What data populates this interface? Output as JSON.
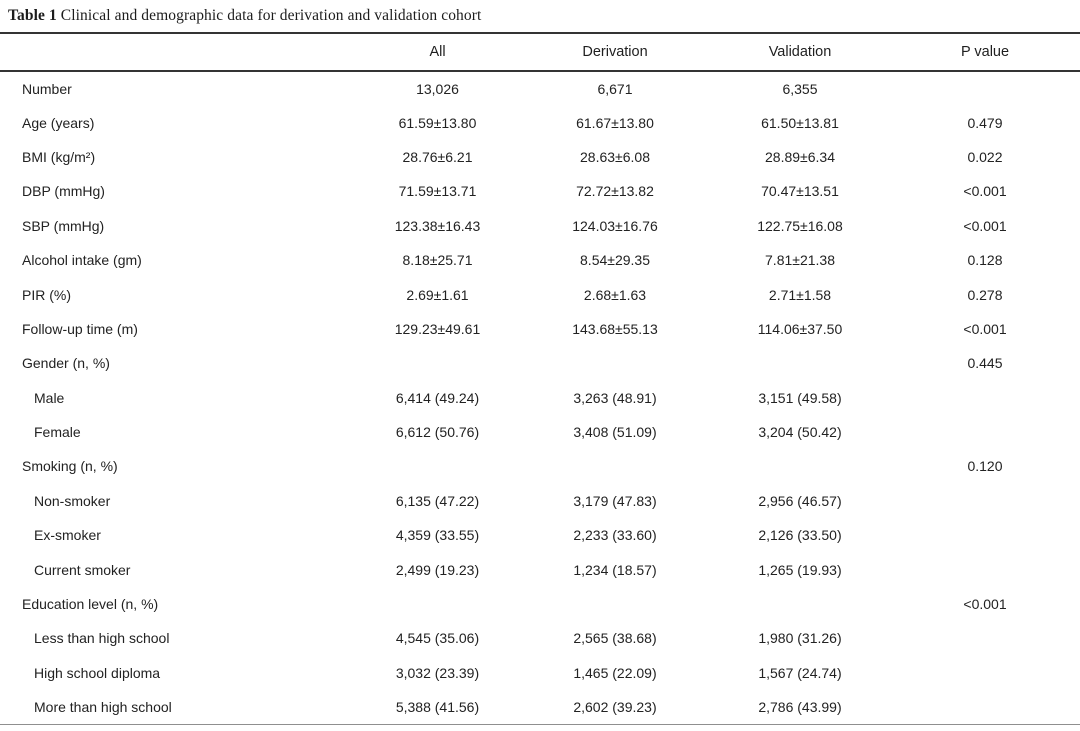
{
  "table": {
    "caption": {
      "label": "Table 1",
      "text": " Clinical and demographic data for derivation and validation cohort"
    },
    "columns": {
      "variable": "",
      "all": "All",
      "derivation": "Derivation",
      "validation": "Validation",
      "p": "P value"
    },
    "rows": [
      {
        "label": "Number",
        "indent": false,
        "all": "13,026",
        "derivation": "6,671",
        "validation": "6,355",
        "p": ""
      },
      {
        "label": "Age (years)",
        "indent": false,
        "all": "61.59±13.80",
        "derivation": "61.67±13.80",
        "validation": "61.50±13.81",
        "p": "0.479"
      },
      {
        "label": "BMI (kg/m²)",
        "indent": false,
        "all": "28.76±6.21",
        "derivation": "28.63±6.08",
        "validation": "28.89±6.34",
        "p": "0.022"
      },
      {
        "label": "DBP (mmHg)",
        "indent": false,
        "all": "71.59±13.71",
        "derivation": "72.72±13.82",
        "validation": "70.47±13.51",
        "p": "<0.001"
      },
      {
        "label": "SBP (mmHg)",
        "indent": false,
        "all": "123.38±16.43",
        "derivation": "124.03±16.76",
        "validation": "122.75±16.08",
        "p": "<0.001"
      },
      {
        "label": "Alcohol intake (gm)",
        "indent": false,
        "all": "8.18±25.71",
        "derivation": "8.54±29.35",
        "validation": "7.81±21.38",
        "p": "0.128"
      },
      {
        "label": "PIR (%)",
        "indent": false,
        "all": "2.69±1.61",
        "derivation": "2.68±1.63",
        "validation": "2.71±1.58",
        "p": "0.278"
      },
      {
        "label": "Follow-up time (m)",
        "indent": false,
        "all": "129.23±49.61",
        "derivation": "143.68±55.13",
        "validation": "114.06±37.50",
        "p": "<0.001"
      },
      {
        "label": "Gender (n, %)",
        "indent": false,
        "all": "",
        "derivation": "",
        "validation": "",
        "p": "0.445"
      },
      {
        "label": "Male",
        "indent": true,
        "all": "6,414 (49.24)",
        "derivation": "3,263 (48.91)",
        "validation": "3,151 (49.58)",
        "p": ""
      },
      {
        "label": "Female",
        "indent": true,
        "all": "6,612 (50.76)",
        "derivation": "3,408 (51.09)",
        "validation": "3,204 (50.42)",
        "p": ""
      },
      {
        "label": "Smoking (n, %)",
        "indent": false,
        "all": "",
        "derivation": "",
        "validation": "",
        "p": "0.120"
      },
      {
        "label": "Non-smoker",
        "indent": true,
        "all": "6,135 (47.22)",
        "derivation": "3,179 (47.83)",
        "validation": "2,956 (46.57)",
        "p": ""
      },
      {
        "label": "Ex-smoker",
        "indent": true,
        "all": "4,359 (33.55)",
        "derivation": "2,233 (33.60)",
        "validation": "2,126 (33.50)",
        "p": ""
      },
      {
        "label": "Current smoker",
        "indent": true,
        "all": "2,499 (19.23)",
        "derivation": "1,234 (18.57)",
        "validation": "1,265 (19.93)",
        "p": ""
      },
      {
        "label": "Education level (n, %)",
        "indent": false,
        "all": "",
        "derivation": "",
        "validation": "",
        "p": "<0.001"
      },
      {
        "label": "Less than high school",
        "indent": true,
        "all": "4,545 (35.06)",
        "derivation": "2,565 (38.68)",
        "validation": "1,980 (31.26)",
        "p": ""
      },
      {
        "label": "High school diploma",
        "indent": true,
        "all": "3,032 (23.39)",
        "derivation": "1,465 (22.09)",
        "validation": "1,567 (24.74)",
        "p": ""
      },
      {
        "label": "More than high school",
        "indent": true,
        "all": "5,388 (41.56)",
        "derivation": "2,602 (39.23)",
        "validation": "2,786 (43.99)",
        "p": ""
      }
    ]
  },
  "colors": {
    "background": "#ffffff",
    "text": "#222222",
    "rule_dark": "#343434",
    "rule_bottom": "#8f8f8f"
  }
}
